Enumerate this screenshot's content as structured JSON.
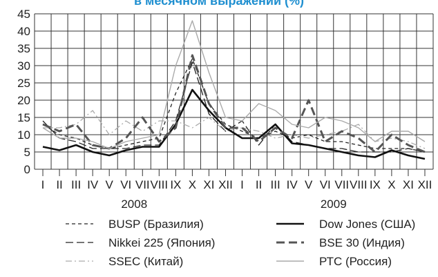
{
  "chart_data": {
    "type": "line",
    "title": "в месячном выражении (%)",
    "ylim": [
      0,
      45
    ],
    "yticks": [
      0,
      5,
      10,
      15,
      20,
      25,
      30,
      35,
      40,
      45
    ],
    "months": [
      "I",
      "II",
      "III",
      "IV",
      "V",
      "VI",
      "VII",
      "VIII",
      "IX",
      "X",
      "XI",
      "XII",
      "I",
      "II",
      "III",
      "IV",
      "V",
      "VI",
      "VII",
      "VIII",
      "IX",
      "X",
      "XI",
      "XII"
    ],
    "years": [
      "2008",
      "2009"
    ],
    "grid": true,
    "legend_position": "bottom",
    "series": [
      {
        "name": "BUSP (Бразилия)",
        "style": "dash-short",
        "color": "#222222",
        "values": [
          13,
          10,
          9,
          7,
          6,
          7,
          8,
          9,
          22,
          32,
          19,
          13,
          11,
          9,
          11,
          9,
          10,
          8,
          8,
          7,
          6,
          6,
          6,
          5
        ]
      },
      {
        "name": "Nikkei 225 (Япония)",
        "style": "dash-long",
        "color": "#222222",
        "values": [
          14,
          9,
          8,
          6,
          6,
          6,
          7,
          7,
          14,
          31,
          16,
          11,
          14,
          7,
          13,
          8,
          7,
          6,
          6,
          5,
          5,
          5,
          6,
          5
        ]
      },
      {
        "name": "SSEC (Китай)",
        "style": "dash-dot",
        "color": "#aaaaaa",
        "values": [
          12,
          12,
          13,
          17,
          10,
          14,
          11,
          14,
          14,
          12,
          15,
          11,
          12,
          11,
          9,
          10,
          9,
          10,
          11,
          13,
          8,
          9,
          8,
          6
        ]
      },
      {
        "name": "Dow Jones (США)",
        "style": "solid-thick",
        "color": "#111111",
        "values": [
          6.5,
          5.5,
          7,
          5,
          4,
          5.5,
          6.5,
          6.5,
          13,
          23,
          17,
          12,
          9,
          9,
          13,
          7.5,
          7,
          6,
          5,
          4,
          3.5,
          5.5,
          4,
          3
        ]
      },
      {
        "name": "BSE 30 (Индия)",
        "style": "dash-thick",
        "color": "#555555",
        "values": [
          13,
          11,
          13,
          7,
          6,
          9,
          15,
          8,
          12,
          33,
          19,
          12,
          12,
          8,
          12,
          9,
          20,
          8,
          11,
          9,
          5,
          10,
          7,
          5
        ]
      },
      {
        "name": "РТС (Россия)",
        "style": "solid-thin",
        "color": "#aaaaaa",
        "values": [
          12,
          9,
          9,
          8,
          6,
          8,
          9,
          10,
          30,
          43,
          28,
          15,
          14,
          19,
          17,
          13,
          12,
          15,
          14,
          12,
          8,
          11,
          11,
          8
        ]
      }
    ]
  }
}
